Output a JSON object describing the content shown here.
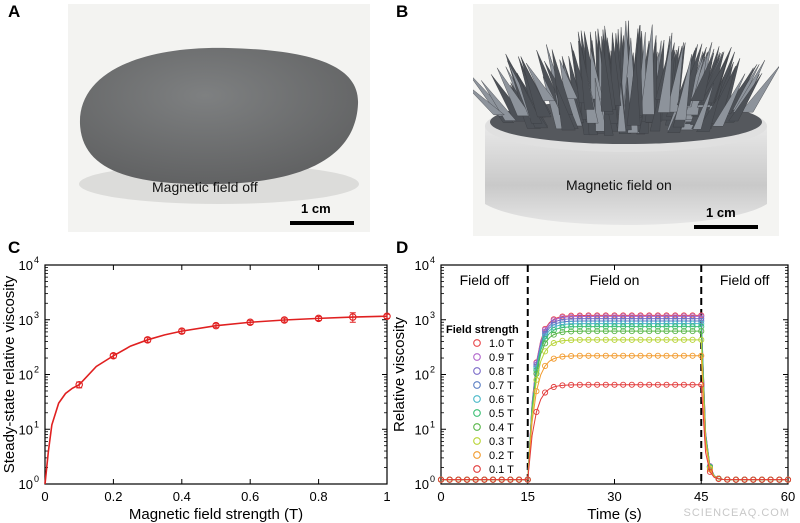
{
  "panels": {
    "a": {
      "letter": "A",
      "caption": "Magnetic field off",
      "scale": "1 cm"
    },
    "b": {
      "letter": "B",
      "caption": "Magnetic field on",
      "scale": "1 cm"
    },
    "c": {
      "letter": "C"
    },
    "d": {
      "letter": "D"
    }
  },
  "watermark": "SCIENCEAQ.COM",
  "colors": {
    "fit_line": "#e02020",
    "axis": "#000000",
    "photo_bg": "#f2f2f0",
    "putty": "#6e6f70",
    "dish": "#d9d9d9",
    "spikes": "#4a4d52"
  },
  "chart_data": [
    {
      "type": "scatter",
      "panel": "C",
      "title": "",
      "xlabel": "Magnetic field strength (T)",
      "ylabel": "Steady-state relative viscosity",
      "xlim": [
        0,
        1
      ],
      "ylim": [
        1,
        10000
      ],
      "yscale": "log",
      "x_ticks": [
        "0",
        "0.2",
        "0.4",
        "0.6",
        "0.8",
        "1"
      ],
      "y_ticks": [
        "10",
        "10",
        "10",
        "10",
        "10"
      ],
      "y_tick_exponents": [
        "0",
        "1",
        "2",
        "3",
        "4"
      ],
      "grid": false,
      "series": [
        {
          "marker": "open-circle",
          "color": "#e02020",
          "x": [
            0.1,
            0.2,
            0.3,
            0.4,
            0.5,
            0.6,
            0.7,
            0.8,
            0.9,
            1.0
          ],
          "y": [
            65,
            220,
            430,
            620,
            780,
            900,
            990,
            1060,
            1120,
            1160
          ],
          "error": [
            8,
            20,
            40,
            55,
            65,
            75,
            80,
            90,
            220,
            100
          ]
        },
        {
          "type": "line",
          "color": "#e02020",
          "fit": "saturating",
          "x": [
            0,
            0.01,
            0.02,
            0.04,
            0.06,
            0.08,
            0.1,
            0.15,
            0.2,
            0.25,
            0.3,
            0.35,
            0.4,
            0.5,
            0.6,
            0.7,
            0.8,
            0.9,
            1.0
          ],
          "y": [
            1,
            4,
            12,
            30,
            45,
            56,
            65,
            140,
            220,
            330,
            430,
            530,
            620,
            780,
            900,
            990,
            1060,
            1120,
            1160
          ]
        }
      ]
    },
    {
      "type": "line",
      "panel": "D",
      "title": "",
      "xlabel": "Time (s)",
      "ylabel": "Relative viscosity",
      "xlim": [
        0,
        60
      ],
      "ylim": [
        1,
        10000
      ],
      "yscale": "log",
      "x_ticks": [
        "0",
        "15",
        "30",
        "45",
        "60"
      ],
      "y_ticks": [
        "10",
        "10",
        "10",
        "10",
        "10"
      ],
      "y_tick_exponents": [
        "0",
        "1",
        "2",
        "3",
        "4"
      ],
      "grid": false,
      "phase_labels": [
        "Field off",
        "Field on",
        "Field off"
      ],
      "phase_boundaries": [
        15,
        45
      ],
      "legend_title": "Field strength",
      "legend_position": "left",
      "series": [
        {
          "name": "1.0 T",
          "color": "#e8474a",
          "plateau": 1200
        },
        {
          "name": "0.9 T",
          "color": "#b266cc",
          "plateau": 1150
        },
        {
          "name": "0.8 T",
          "color": "#7b6bc8",
          "plateau": 1050
        },
        {
          "name": "0.7 T",
          "color": "#5b7fc4",
          "plateau": 950
        },
        {
          "name": "0.6 T",
          "color": "#49b8c8",
          "plateau": 850
        },
        {
          "name": "0.5 T",
          "color": "#3cbf74",
          "plateau": 750
        },
        {
          "name": "0.4 T",
          "color": "#58b648",
          "plateau": 620
        },
        {
          "name": "0.3 T",
          "color": "#b8d435",
          "plateau": 430
        },
        {
          "name": "0.2 T",
          "color": "#f29b2e",
          "plateau": 220
        },
        {
          "name": "0.1 T",
          "color": "#e23a3a",
          "plateau": 65
        }
      ],
      "off_level": 1.2
    }
  ]
}
